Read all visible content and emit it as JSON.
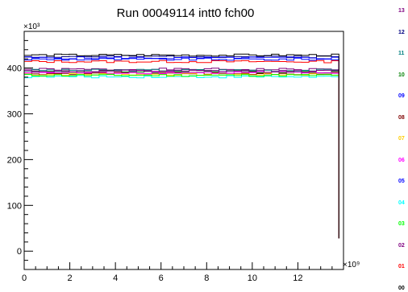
{
  "chart_data": {
    "type": "line",
    "title": "Run 00049114 intt0 fch00",
    "xlabel": "",
    "ylabel": "",
    "x_multiplier": "×10⁹",
    "y_multiplier": "×10³",
    "xlim": [
      0,
      14
    ],
    "ylim": [
      -40,
      480
    ],
    "x_ticks": [
      0,
      2,
      4,
      6,
      8,
      10,
      12
    ],
    "y_ticks": [
      0,
      100,
      200,
      300,
      400
    ],
    "x_tick_labels": [
      "0",
      "2",
      "4",
      "6",
      "8",
      "10",
      "12"
    ],
    "y_tick_labels": [
      "0",
      "100",
      "200",
      "300",
      "400"
    ],
    "x_end": 13.8,
    "drop_value": 28,
    "grid": false,
    "series": [
      {
        "name": "13",
        "color": "#7f007f",
        "level": 397
      },
      {
        "name": "12",
        "color": "#000080",
        "level": 425
      },
      {
        "name": "11",
        "color": "#007f7f",
        "level": 395
      },
      {
        "name": "10",
        "color": "#007f00",
        "level": 392
      },
      {
        "name": "09",
        "color": "#0000ff",
        "level": 422
      },
      {
        "name": "08",
        "color": "#7f0000",
        "level": 388
      },
      {
        "name": "07",
        "color": "#ffcc00",
        "level": 386
      },
      {
        "name": "06",
        "color": "#ff00ff",
        "level": 390
      },
      {
        "name": "05",
        "color": "#0000ff",
        "level": 419
      },
      {
        "name": "04",
        "color": "#00ffff",
        "level": 381
      },
      {
        "name": "03",
        "color": "#00ff00",
        "level": 384
      },
      {
        "name": "02",
        "color": "#7f007f",
        "level": 393
      },
      {
        "name": "01",
        "color": "#ff0000",
        "level": 414
      },
      {
        "name": "00",
        "color": "#000000",
        "level": 428
      }
    ]
  }
}
